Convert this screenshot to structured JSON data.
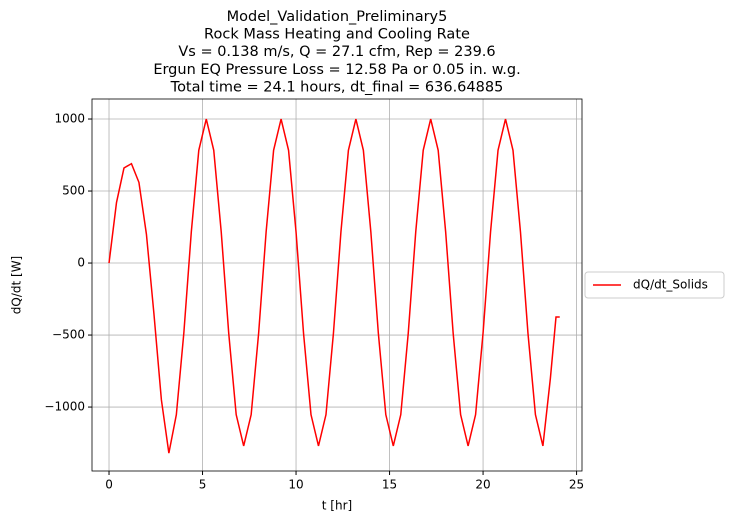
{
  "chart_data": {
    "type": "line",
    "title": [
      "Model_Validation_Preliminary5",
      "Rock Mass Heating and Cooling Rate",
      "Vs = 0.138 m/s, Q = 27.1 cfm, Rep = 239.6",
      "Ergun EQ Pressure Loss = 12.58 Pa or 0.05 in. w.g.",
      "Total time = 24.1 hours, dt_final = 636.64885"
    ],
    "x_label": "t [hr]",
    "y_label": "dQ/dt [W]",
    "x": [
      0,
      0.4,
      0.8,
      1.2,
      1.6,
      2.0,
      2.4,
      2.8,
      3.2,
      3.6,
      4.0,
      4.4,
      4.8,
      5.2,
      5.6,
      6.0,
      6.4,
      6.8,
      7.2,
      7.6,
      8.0,
      8.4,
      8.8,
      9.2,
      9.6,
      10.0,
      10.4,
      10.8,
      11.2,
      11.6,
      12.0,
      12.4,
      12.8,
      13.2,
      13.6,
      14.0,
      14.4,
      14.8,
      15.2,
      15.6,
      16.0,
      16.4,
      16.8,
      17.2,
      17.6,
      18.0,
      18.4,
      18.8,
      19.2,
      19.6,
      20.0,
      20.4,
      20.8,
      21.2,
      21.6,
      22.0,
      22.4,
      22.8,
      23.2,
      23.6,
      23.9,
      24.1
    ],
    "series": [
      {
        "name": "dQ/dt_Solids",
        "color": "#ff0000",
        "values": [
          0,
          420,
          660,
          690,
          560,
          200,
          -350,
          -950,
          -1320,
          -1053,
          -486,
          216,
          783,
          1000,
          783,
          216,
          -486,
          -1053,
          -1270,
          -1053,
          -486,
          216,
          783,
          1000,
          783,
          216,
          -486,
          -1053,
          -1270,
          -1053,
          -486,
          216,
          783,
          1000,
          783,
          216,
          -486,
          -1053,
          -1270,
          -1053,
          -486,
          216,
          783,
          1000,
          783,
          216,
          -486,
          -1053,
          -1270,
          -1053,
          -486,
          216,
          783,
          1000,
          783,
          216,
          -486,
          -1053,
          -1270,
          -800,
          -375,
          -375
        ]
      }
    ],
    "xlim": [
      -0.91,
      25.29
    ],
    "ylim": [
      -1444,
      1139
    ],
    "xticks": [
      0,
      5,
      10,
      15,
      20,
      25
    ],
    "yticks": [
      {
        "value": -1000,
        "label": "−1000"
      },
      {
        "value": -500,
        "label": "−500"
      },
      0,
      500,
      1000
    ],
    "grid": true,
    "legend": "right"
  }
}
